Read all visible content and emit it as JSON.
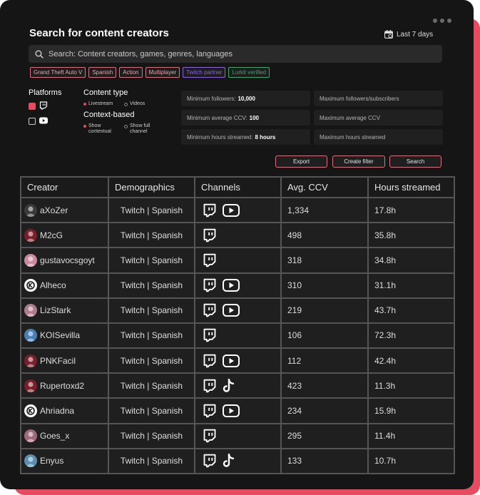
{
  "header": {
    "title": "Search for content creators",
    "period": "Last 7 days"
  },
  "search": {
    "placeholder": "Search: Content creators, games, genres, languages"
  },
  "tags": [
    {
      "label": "Grand Theft Auto V",
      "color": "#d9717e"
    },
    {
      "label": "Spanish",
      "color": "#d9717e"
    },
    {
      "label": "Action",
      "color": "#d9717e"
    },
    {
      "label": "Multiplayer",
      "color": "#d9717e"
    },
    {
      "label": "Twitch partner",
      "color": "#8e63e0"
    },
    {
      "label": "Lurkit verified",
      "color": "#3fa36b"
    }
  ],
  "platforms": {
    "label": "Platforms",
    "items": [
      {
        "icon": "twitch-icon",
        "checked": true
      },
      {
        "icon": "youtube-icon",
        "checked": false
      }
    ]
  },
  "content_type": {
    "label": "Content type",
    "options": [
      {
        "label": "Livestream",
        "selected": true
      },
      {
        "label": "Videos",
        "selected": false
      }
    ]
  },
  "context": {
    "label": "Context-based",
    "options": [
      {
        "label": "Show contextual",
        "selected": true
      },
      {
        "label": "Show full channel",
        "selected": false
      }
    ]
  },
  "filters": {
    "min_followers": {
      "label": "Minimum followers:",
      "value": "10,000"
    },
    "max_followers": {
      "label": "Maximum followers/subscribers"
    },
    "min_ccv": {
      "label": "Minimum average CCV:",
      "value": "100"
    },
    "max_ccv": {
      "label": "Maximum average CCV"
    },
    "min_hours": {
      "label": "Minimum hours streamed:",
      "value": "8 hours"
    },
    "max_hours": {
      "label": "Maximum hours streamed"
    }
  },
  "actions": {
    "export": "Export",
    "create_filter": "Create filter",
    "search": "Search"
  },
  "table": {
    "columns": [
      "Creator",
      "Demographics",
      "Channels",
      "Avg. CCV",
      "Hours streamed"
    ],
    "rows": [
      {
        "creator": "aXoZer",
        "demographics": "Twitch | Spanish",
        "channels": [
          "twitch",
          "youtube"
        ],
        "ccv": "1,334",
        "hours": "17.8h"
      },
      {
        "creator": "M2cG",
        "demographics": "Twitch | Spanish",
        "channels": [
          "twitch"
        ],
        "ccv": "498",
        "hours": "35.8h"
      },
      {
        "creator": "gustavocsgoyt",
        "demographics": "Twitch | Spanish",
        "channels": [
          "twitch"
        ],
        "ccv": "318",
        "hours": "34.8h"
      },
      {
        "creator": "Alheco",
        "demographics": "Twitch | Spanish",
        "channels": [
          "twitch",
          "youtube"
        ],
        "ccv": "310",
        "hours": "31.1h"
      },
      {
        "creator": "LizStark",
        "demographics": "Twitch | Spanish",
        "channels": [
          "twitch",
          "youtube"
        ],
        "ccv": "219",
        "hours": "43.7h"
      },
      {
        "creator": "KOISevilla",
        "demographics": "Twitch | Spanish",
        "channels": [
          "twitch"
        ],
        "ccv": "106",
        "hours": "72.3h"
      },
      {
        "creator": "PNKFacil",
        "demographics": "Twitch | Spanish",
        "channels": [
          "twitch",
          "youtube"
        ],
        "ccv": "112",
        "hours": "42.4h"
      },
      {
        "creator": "Rupertoxd2",
        "demographics": "Twitch | Spanish",
        "channels": [
          "twitch",
          "tiktok"
        ],
        "ccv": "423",
        "hours": "11.3h"
      },
      {
        "creator": "Ahriadna",
        "demographics": "Twitch | Spanish",
        "channels": [
          "twitch",
          "youtube"
        ],
        "ccv": "234",
        "hours": "15.9h"
      },
      {
        "creator": "Goes_x",
        "demographics": "Twitch | Spanish",
        "channels": [
          "twitch"
        ],
        "ccv": "295",
        "hours": "11.4h"
      },
      {
        "creator": "Enyus",
        "demographics": "Twitch | Spanish",
        "channels": [
          "twitch",
          "tiktok"
        ],
        "ccv": "133",
        "hours": "10.7h"
      }
    ]
  }
}
